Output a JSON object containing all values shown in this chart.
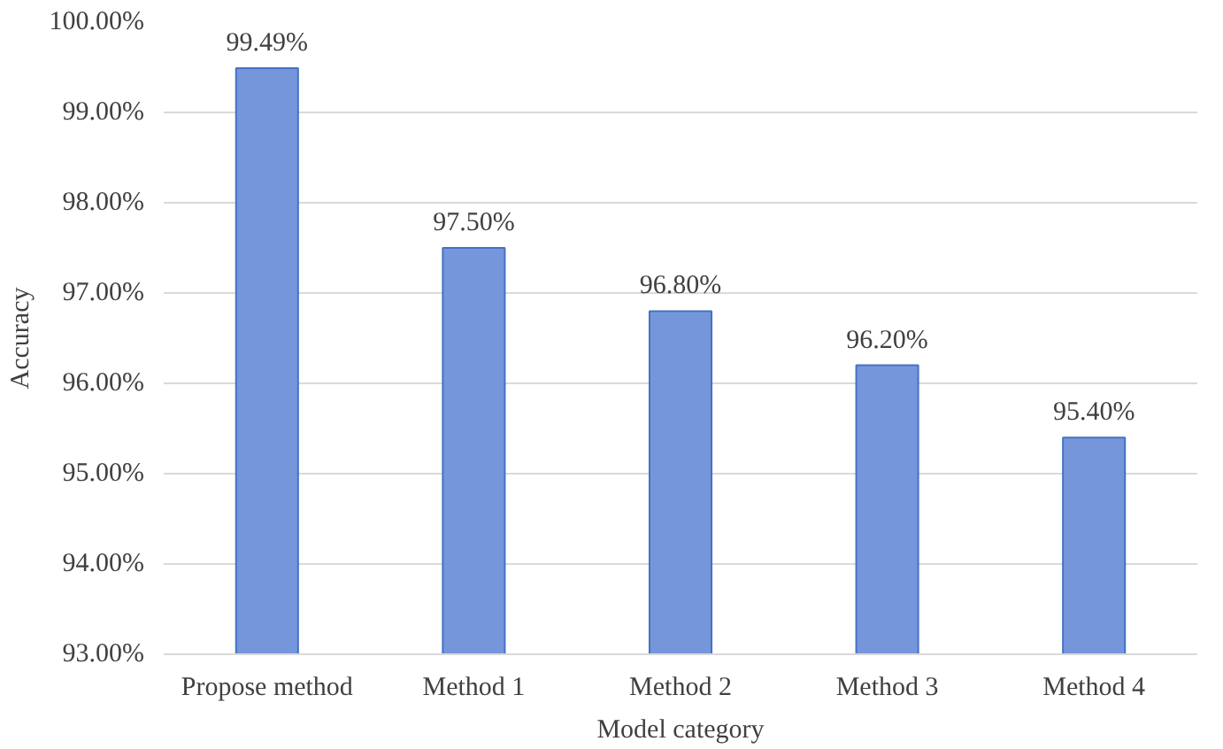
{
  "chart_data": {
    "type": "bar",
    "xlabel": "Model category",
    "ylabel": "Accuracy",
    "categories": [
      "Propose method",
      "Method 1",
      "Method 2",
      "Method 3",
      "Method 4"
    ],
    "values": [
      99.49,
      97.5,
      96.8,
      96.2,
      95.4
    ],
    "value_labels": [
      "99.49%",
      "97.50%",
      "96.80%",
      "96.20%",
      "95.40%"
    ],
    "color": "#7696dc",
    "ylim": [
      93,
      100
    ],
    "yticks": [
      {
        "value": 93,
        "label": "93.00%"
      },
      {
        "value": 94,
        "label": "94.00%"
      },
      {
        "value": 95,
        "label": "95.00%"
      },
      {
        "value": 96,
        "label": "96.00%"
      },
      {
        "value": 97,
        "label": "97.00%"
      },
      {
        "value": 98,
        "label": "98.00%"
      },
      {
        "value": 99,
        "label": "99.00%"
      },
      {
        "value": 100,
        "label": "100.00%"
      }
    ],
    "grid": "y"
  }
}
